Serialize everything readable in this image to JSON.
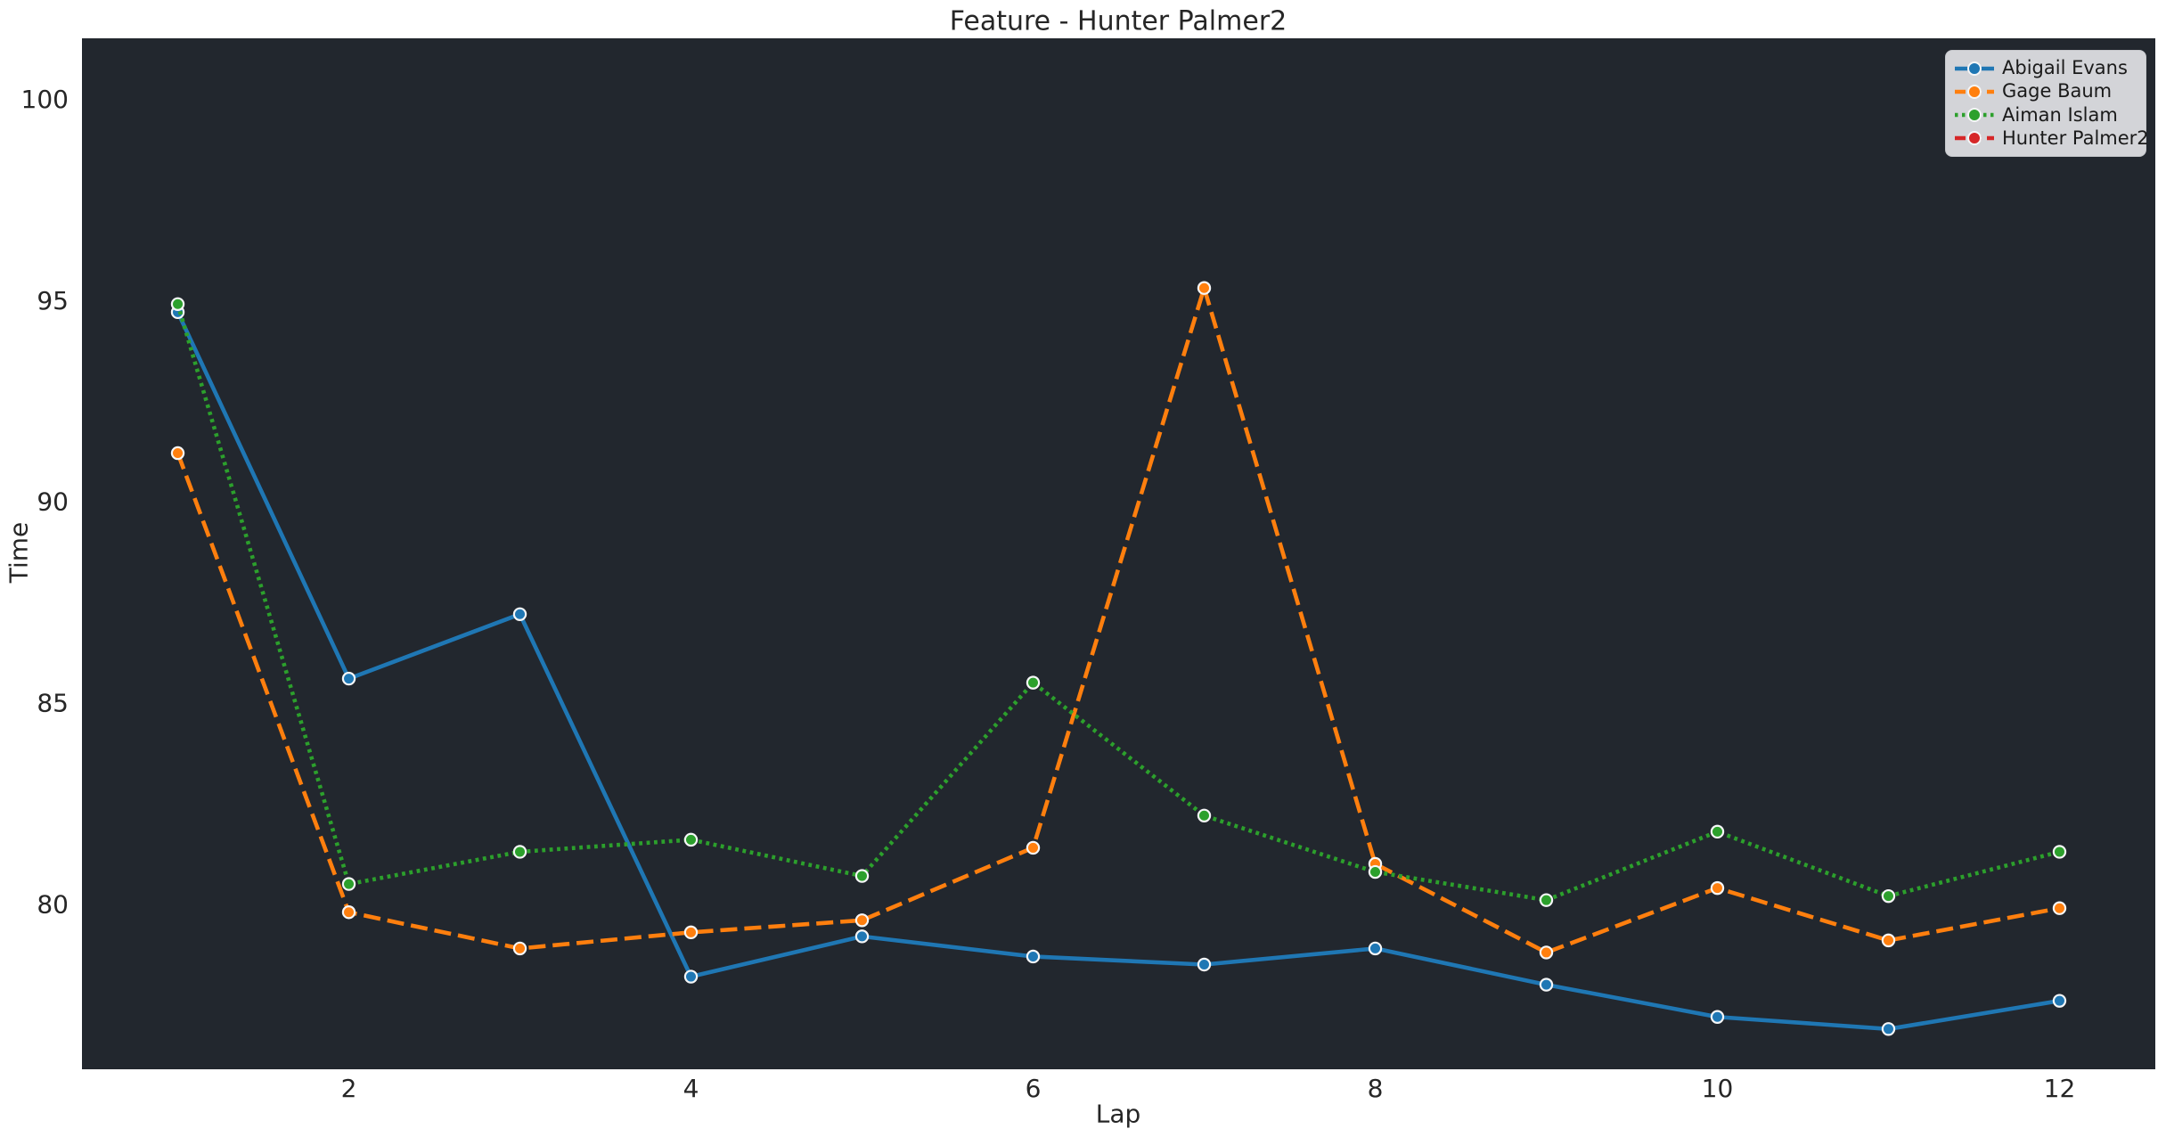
{
  "chart_data": {
    "type": "line",
    "title": "Feature - Hunter Palmer2",
    "xlabel": "Lap",
    "ylabel": "Time",
    "x": [
      1,
      2,
      3,
      4,
      5,
      6,
      7,
      8,
      9,
      10,
      11,
      12
    ],
    "xticks": [
      2,
      4,
      6,
      8,
      10,
      12
    ],
    "yticks": [
      80,
      85,
      90,
      95,
      100
    ],
    "xlim": [
      0.44,
      12.56
    ],
    "ylim": [
      75.9,
      101.5
    ],
    "grid": false,
    "figure_background": "#ffffff",
    "plot_background": "#22272e",
    "marker_edge_color": "#f5f6f7",
    "legend": {
      "position": "upper right",
      "background": "#d3d4d8",
      "border_color": "#c6c8cc"
    },
    "series": [
      {
        "name": "Abigail Evans",
        "color": "#1f77b4",
        "line_style": "solid",
        "marker": "circle",
        "values": [
          94.7,
          85.6,
          87.2,
          78.2,
          79.2,
          78.7,
          78.5,
          78.9,
          78.0,
          77.2,
          76.9,
          77.6
        ]
      },
      {
        "name": "Gage Baum",
        "color": "#ff7f0e",
        "line_style": "dashed",
        "marker": "circle",
        "values": [
          91.2,
          79.8,
          78.9,
          79.3,
          79.6,
          81.4,
          95.3,
          81.0,
          78.8,
          80.4,
          79.1,
          79.9
        ]
      },
      {
        "name": "Aiman Islam",
        "color": "#2ca02c",
        "line_style": "dotted",
        "marker": "circle",
        "values": [
          94.9,
          80.5,
          81.3,
          81.6,
          80.7,
          85.5,
          82.2,
          80.8,
          80.1,
          81.8,
          80.2,
          81.3
        ]
      },
      {
        "name": "Hunter Palmer2",
        "color": "#d62728",
        "line_style": "dashed",
        "marker": "circle",
        "values": []
      }
    ]
  }
}
